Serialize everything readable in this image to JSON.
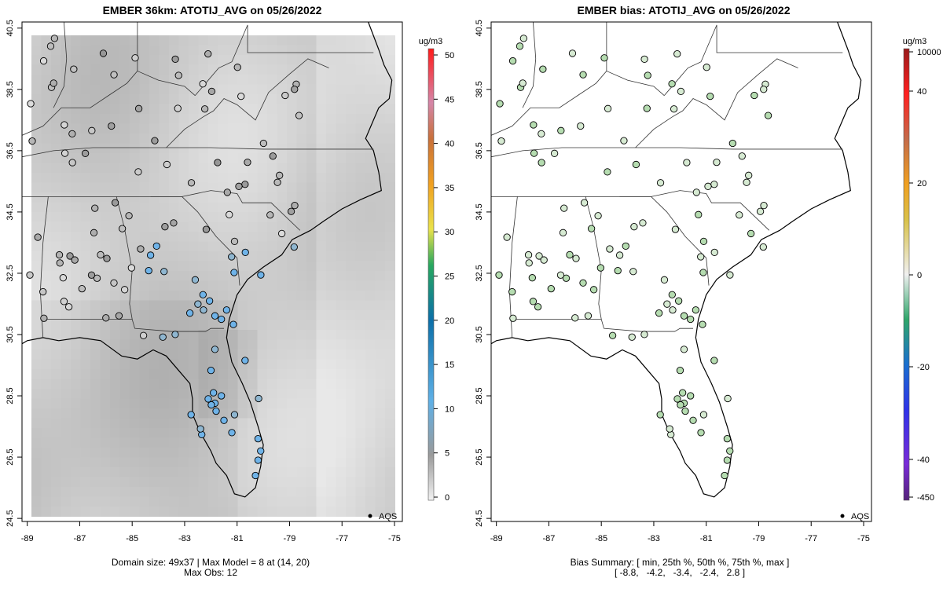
{
  "left_panel": {
    "title": "EMBER 36km: ATOTIJ_AVG on 05/26/2022",
    "caption_line1": "Domain size: 49x37 | Max Model = 8 at (14, 20)",
    "caption_line2": "Max Obs: 12",
    "legend_label": "AQS",
    "colorbar": {
      "unit": "ug/m3",
      "ticks": [
        "50",
        "45",
        "40",
        "35",
        "30",
        "25",
        "20",
        "15",
        "10",
        "5",
        "0"
      ],
      "range": [
        0,
        50
      ]
    }
  },
  "right_panel": {
    "title": "EMBER bias: ATOTIJ_AVG on 05/26/2022",
    "caption_line1": "Bias Summary: [ min, 25th %, 50th %, 75th %, max ]",
    "caption_line2": "[ -8.8,   -4.2,   -3.4,   -2.4,   2.8 ]",
    "legend_label": "AQS",
    "colorbar": {
      "unit": "ug/m3",
      "ticks": [
        "10000",
        "40",
        "20",
        "0",
        "-20",
        "-40",
        "-450"
      ]
    }
  },
  "axes": {
    "x_ticks": [
      "-89",
      "-87",
      "-85",
      "-83",
      "-81",
      "-79",
      "-77",
      "-75"
    ],
    "y_ticks": [
      "40.5",
      "38.5",
      "36.5",
      "34.5",
      "32.5",
      "30.5",
      "28.5",
      "26.5",
      "24.5"
    ],
    "lon_range": [
      -89.2,
      -74.7
    ],
    "lat_range": [
      24.4,
      40.7
    ]
  },
  "colors": {
    "low_grey": "#e6e6e6",
    "mid_grey": "#bdbdbd",
    "high_grey": "#9a9a9a",
    "obs_blue": "#6fb3e8",
    "bias_green": "#b5dcb0",
    "bias_yellow": "#e6dfa0"
  }
}
